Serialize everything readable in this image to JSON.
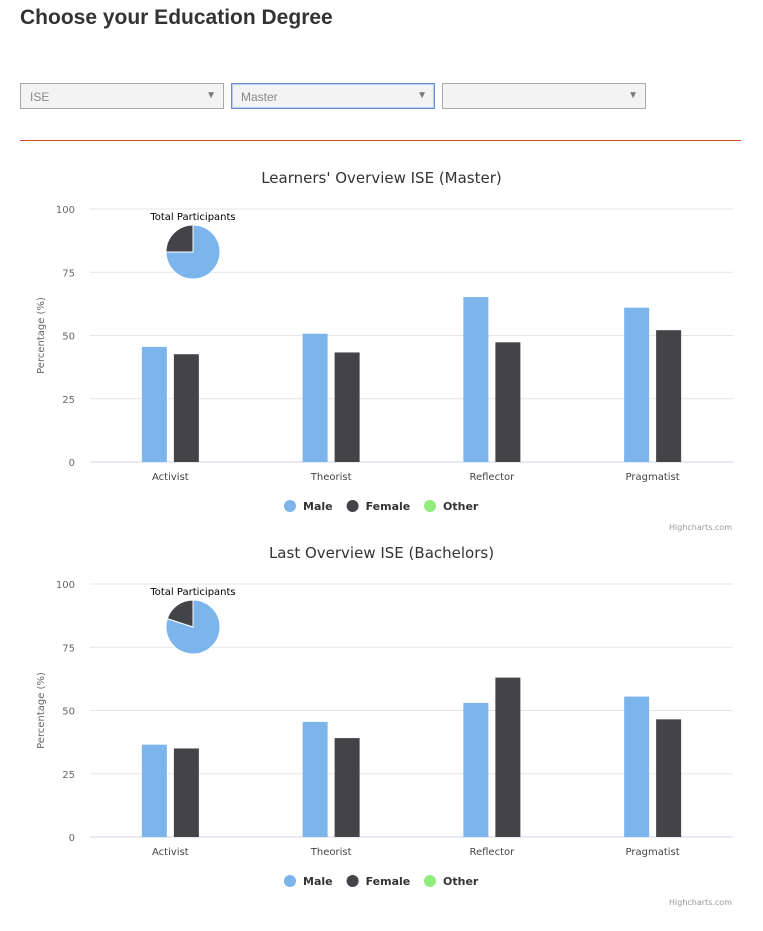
{
  "page": {
    "title": "Choose your Education Degree"
  },
  "filters": {
    "program": {
      "value": "ISE"
    },
    "degree": {
      "value": "Master"
    },
    "extra": {
      "value": ""
    }
  },
  "colors": {
    "male": "#7cb5ec",
    "female": "#434348",
    "other": "#90ed7d",
    "divider": "#d04a23"
  },
  "chart_data": [
    {
      "type": "bar",
      "title": "Learners' Overview ISE (Master)",
      "ylabel": "Percentage (%)",
      "xlabel": "",
      "ylim": [
        0,
        100
      ],
      "yticks": [
        0,
        25,
        50,
        75,
        100
      ],
      "grid": true,
      "legend_position": "bottom-center",
      "categories": [
        "Activist",
        "Theorist",
        "Reflector",
        "Pragmatist"
      ],
      "series": [
        {
          "name": "Male",
          "color": "#7cb5ec",
          "values": [
            45.5,
            50.7,
            65.2,
            61
          ]
        },
        {
          "name": "Female",
          "color": "#434348",
          "values": [
            42.6,
            43.3,
            47.3,
            52.1
          ]
        },
        {
          "name": "Other",
          "color": "#90ed7d",
          "values": [
            0,
            0,
            0,
            0
          ]
        }
      ],
      "inset_pie": {
        "title": "Total Participants",
        "slices": [
          {
            "name": "Male",
            "value": 75
          },
          {
            "name": "Female",
            "value": 25
          }
        ]
      },
      "credit": "Highcharts.com"
    },
    {
      "type": "bar",
      "title": "Last Overview ISE (Bachelors)",
      "ylabel": "Percentage (%)",
      "xlabel": "",
      "ylim": [
        0,
        100
      ],
      "yticks": [
        0,
        25,
        50,
        75,
        100
      ],
      "grid": true,
      "legend_position": "bottom-center",
      "categories": [
        "Activist",
        "Theorist",
        "Reflector",
        "Pragmatist"
      ],
      "series": [
        {
          "name": "Male",
          "color": "#7cb5ec",
          "values": [
            36.5,
            45.5,
            53,
            55.5
          ]
        },
        {
          "name": "Female",
          "color": "#434348",
          "values": [
            35,
            39.1,
            63,
            46.5
          ]
        },
        {
          "name": "Other",
          "color": "#90ed7d",
          "values": [
            0,
            0,
            0,
            0
          ]
        }
      ],
      "inset_pie": {
        "title": "Total Participants",
        "slices": [
          {
            "name": "Male",
            "value": 80
          },
          {
            "name": "Female",
            "value": 20
          }
        ]
      },
      "credit": "Highcharts.com"
    }
  ]
}
